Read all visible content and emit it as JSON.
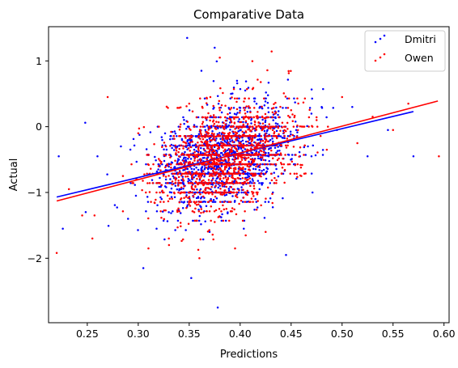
{
  "chart_data": {
    "type": "scatter",
    "title": "Comparative Data",
    "xlabel": "Predictions",
    "ylabel": "Actual",
    "xlim": [
      0.212,
      0.605
    ],
    "ylim": [
      -2.98,
      1.52
    ],
    "xticks": [
      0.25,
      0.3,
      0.35,
      0.4,
      0.45,
      0.5,
      0.55,
      0.6
    ],
    "xtick_labels": [
      "0.25",
      "0.30",
      "0.35",
      "0.40",
      "0.45",
      "0.50",
      "0.55",
      "0.60"
    ],
    "yticks": [
      -2,
      -1,
      0,
      1
    ],
    "ytick_labels": [
      "−2",
      "−1",
      "0",
      "1"
    ],
    "grid": false,
    "legend_position": "top-right",
    "series": [
      {
        "name": "Dmitri",
        "color": "#0000ff",
        "marker_points_sample": [
          [
            0.222,
            -0.45
          ],
          [
            0.226,
            -1.55
          ],
          [
            0.248,
            0.06
          ],
          [
            0.26,
            -0.45
          ],
          [
            0.283,
            -0.3
          ],
          [
            0.29,
            -1.4
          ],
          [
            0.305,
            -2.15
          ],
          [
            0.318,
            -1.55
          ],
          [
            0.33,
            -1.3
          ],
          [
            0.338,
            -0.7
          ],
          [
            0.342,
            -0.95
          ],
          [
            0.345,
            -0.55
          ],
          [
            0.348,
            1.35
          ],
          [
            0.352,
            -2.3
          ],
          [
            0.355,
            -0.35
          ],
          [
            0.36,
            -0.85
          ],
          [
            0.362,
            0.85
          ],
          [
            0.365,
            -0.25
          ],
          [
            0.37,
            -1.6
          ],
          [
            0.372,
            -0.55
          ],
          [
            0.375,
            1.2
          ],
          [
            0.378,
            -2.75
          ],
          [
            0.382,
            -0.4
          ],
          [
            0.388,
            -0.15
          ],
          [
            0.392,
            -0.75
          ],
          [
            0.398,
            -0.3
          ],
          [
            0.405,
            0.55
          ],
          [
            0.41,
            -0.6
          ],
          [
            0.415,
            -1.1
          ],
          [
            0.42,
            -0.2
          ],
          [
            0.428,
            -0.45
          ],
          [
            0.435,
            0.05
          ],
          [
            0.445,
            -1.95
          ],
          [
            0.455,
            -0.05
          ],
          [
            0.47,
            -0.45
          ],
          [
            0.48,
            0.3
          ],
          [
            0.495,
            -0.05
          ],
          [
            0.51,
            0.3
          ],
          [
            0.525,
            -0.45
          ],
          [
            0.545,
            -0.05
          ],
          [
            0.57,
            -0.45
          ]
        ],
        "regression_line": {
          "x": [
            0.22,
            0.57
          ],
          "y": [
            -1.07,
            0.23
          ]
        }
      },
      {
        "name": "Owen",
        "color": "#ff0000",
        "marker_points_sample": [
          [
            0.22,
            -1.92
          ],
          [
            0.232,
            -0.95
          ],
          [
            0.245,
            -1.35
          ],
          [
            0.255,
            -1.7
          ],
          [
            0.27,
            0.45
          ],
          [
            0.285,
            -0.75
          ],
          [
            0.3,
            -0.1
          ],
          [
            0.31,
            -1.85
          ],
          [
            0.32,
            -0.6
          ],
          [
            0.33,
            -1.7
          ],
          [
            0.34,
            -0.45
          ],
          [
            0.345,
            -0.9
          ],
          [
            0.35,
            0.35
          ],
          [
            0.355,
            -1.3
          ],
          [
            0.36,
            -2.0
          ],
          [
            0.363,
            -0.55
          ],
          [
            0.368,
            -0.1
          ],
          [
            0.37,
            -0.75
          ],
          [
            0.375,
            -1.45
          ],
          [
            0.38,
            1.05
          ],
          [
            0.385,
            -0.65
          ],
          [
            0.39,
            -0.35
          ],
          [
            0.395,
            -1.85
          ],
          [
            0.4,
            -0.45
          ],
          [
            0.405,
            0.2
          ],
          [
            0.41,
            -0.9
          ],
          [
            0.418,
            -0.25
          ],
          [
            0.425,
            -1.6
          ],
          [
            0.432,
            -0.05
          ],
          [
            0.44,
            -0.55
          ],
          [
            0.45,
            0.25
          ],
          [
            0.46,
            -0.75
          ],
          [
            0.475,
            0.1
          ],
          [
            0.485,
            -0.35
          ],
          [
            0.5,
            0.45
          ],
          [
            0.515,
            -0.25
          ],
          [
            0.53,
            0.15
          ],
          [
            0.55,
            -0.05
          ],
          [
            0.565,
            0.35
          ],
          [
            0.595,
            -0.45
          ]
        ],
        "regression_line": {
          "x": [
            0.22,
            0.594
          ],
          "y": [
            -1.13,
            0.39
          ]
        }
      }
    ]
  }
}
